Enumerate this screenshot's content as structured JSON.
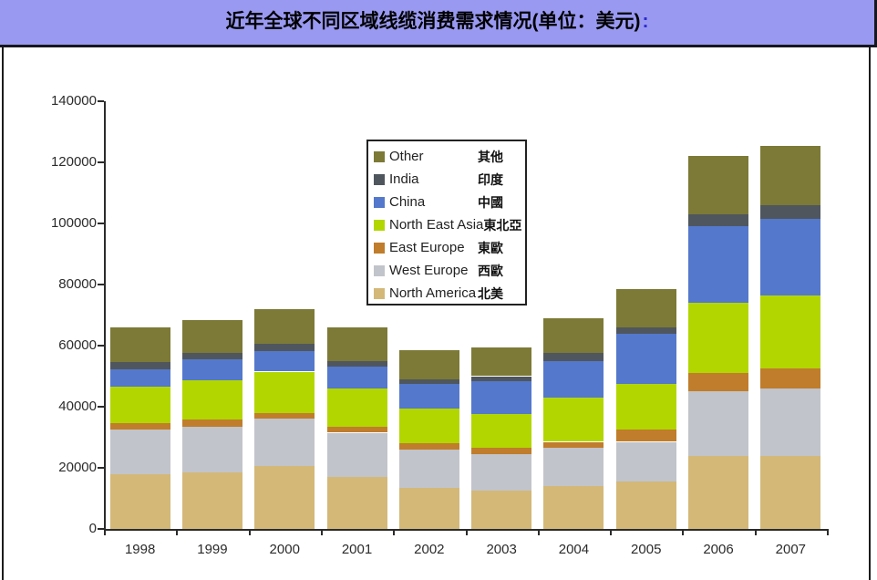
{
  "header": {
    "title": "近年全球不同区域线缆消费需求情况(单位：美元)",
    "colon": ":",
    "background": "#9999F2",
    "colon_color": "#2B2BCC"
  },
  "chart_data": {
    "type": "bar",
    "stacked": true,
    "title": "近年全球不同区域线缆消费需求情况(单位：美元)",
    "xlabel": "",
    "ylabel": "",
    "ylim": [
      0,
      140000
    ],
    "yticks": [
      0,
      20000,
      40000,
      60000,
      80000,
      100000,
      120000,
      140000
    ],
    "grid": false,
    "legend_position": "inside-top-center",
    "categories": [
      "1998",
      "1999",
      "2000",
      "2001",
      "2002",
      "2003",
      "2004",
      "2005",
      "2006",
      "2007"
    ],
    "series": [
      {
        "name": "North America",
        "name_zh": "北美",
        "color": "#D3B878",
        "values": [
          18000,
          18500,
          20500,
          17000,
          13500,
          12500,
          14000,
          15500,
          24000,
          24000
        ]
      },
      {
        "name": "West Europe",
        "name_zh": "西歐",
        "color": "#C1C4CA",
        "values": [
          14500,
          15000,
          15500,
          14500,
          12500,
          12000,
          12500,
          13000,
          21000,
          22000
        ]
      },
      {
        "name": "East Europe",
        "name_zh": "東歐",
        "color": "#C07D2B",
        "values": [
          2000,
          2200,
          2000,
          2000,
          2000,
          2000,
          2000,
          4000,
          6000,
          6500
        ]
      },
      {
        "name": "North East Asia",
        "name_zh": "東北亞",
        "color": "#B2D600",
        "values": [
          12000,
          13000,
          13500,
          12500,
          11500,
          11000,
          14500,
          15000,
          23000,
          24000
        ]
      },
      {
        "name": "China",
        "name_zh": "中國",
        "color": "#5478CB",
        "values": [
          5700,
          6800,
          6700,
          7000,
          8000,
          11000,
          12000,
          16500,
          25000,
          25000
        ]
      },
      {
        "name": "India",
        "name_zh": "印度",
        "color": "#4F565E",
        "values": [
          2300,
          2000,
          2300,
          2000,
          1500,
          1500,
          2500,
          2000,
          4000,
          4500
        ]
      },
      {
        "name": "Other",
        "name_zh": "其他",
        "color": "#7C7A36",
        "values": [
          11500,
          11000,
          11500,
          11000,
          9500,
          9500,
          11500,
          12500,
          19000,
          19500
        ]
      }
    ],
    "legend_order_top_to_bottom": [
      "Other",
      "India",
      "China",
      "North East Asia",
      "East Europe",
      "West Europe",
      "North America"
    ],
    "axis_color": "#2B2B2B"
  }
}
